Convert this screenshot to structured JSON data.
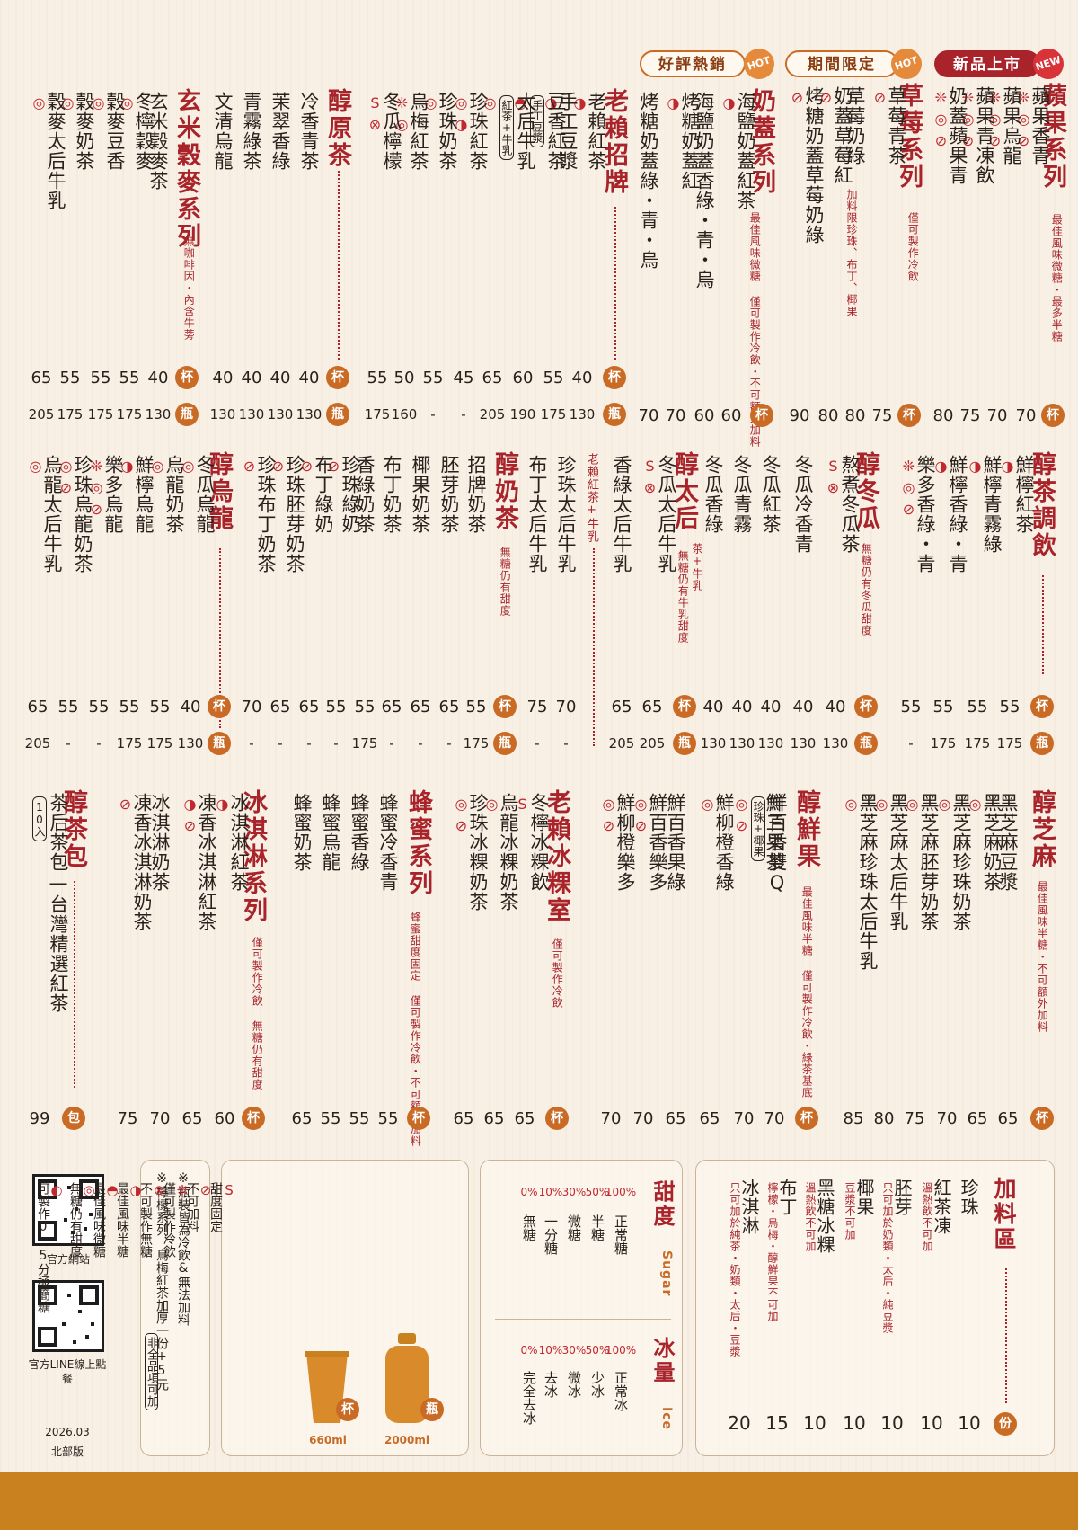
{
  "labels": {
    "hot_seller": "好評熱銷",
    "limited": "期間限定",
    "new_release": "新品上市",
    "hot": "HOT",
    "new": "NEW"
  },
  "unit": {
    "cup": "杯",
    "bottle": "瓶",
    "pack": "包",
    "portion": "份"
  },
  "sections": {
    "apple": {
      "title": "蘋果系列",
      "note": "最佳風味微糖・最多半糖",
      "items": [
        {
          "name": "蘋果香青",
          "icons": "❊◎⊘",
          "cup": "70"
        },
        {
          "name": "蘋果烏龍",
          "icons": "❊◎⊘",
          "cup": "70"
        },
        {
          "name": "蘋果青凍飲",
          "icons": "❊◎⊘",
          "cup": "75"
        },
        {
          "name": "奶蓋蘋果青",
          "icons": "❊◎⊘",
          "cup": "80"
        }
      ]
    },
    "strawberry": {
      "title": "草莓系列",
      "note": "僅可製作冷飲",
      "items": [
        {
          "name": "草莓青茶",
          "icons": "⊘",
          "cup": "75"
        },
        {
          "name": "草莓奶綠",
          "icons": "",
          "cup": "80"
        },
        {
          "name": "奶蓋草莓紅",
          "icons": "⊘",
          "cup": "80"
        },
        {
          "name": "烤糖奶蓋草莓奶綠",
          "icons": "⊘",
          "cup": "90"
        }
      ],
      "topping_note": "加料限珍珠、布丁、椰果"
    },
    "milkcap": {
      "title": "奶蓋系列",
      "note": "最佳風味微糖 僅可製作冷飲・不可額外加料",
      "items": [
        {
          "name": "海鹽奶蓋紅茶",
          "icons": "◑",
          "cup": "60"
        },
        {
          "name": "海鹽奶蓋香綠・青・烏",
          "icons": "",
          "cup": "60"
        },
        {
          "name": "烤糖奶蓋紅",
          "icons": "◑",
          "cup": "70"
        },
        {
          "name": "烤糖奶蓋綠・青・烏",
          "icons": "",
          "cup": "70"
        }
      ]
    },
    "signature": {
      "title": "老賴招牌",
      "items": [
        {
          "name": "老賴紅茶",
          "icons": "◑",
          "cup": "40",
          "bottle": "130"
        },
        {
          "name": "手工豆漿",
          "icons": "◑",
          "cup": "55",
          "bottle": "175"
        },
        {
          "name": "豆香紅茶",
          "tag": "手工豆漿",
          "icons": "◓",
          "cup": "60",
          "bottle": "190"
        },
        {
          "name": "太后牛乳",
          "tag": "紅茶+牛乳",
          "icons": "◎",
          "cup": "65",
          "bottle": "205"
        },
        {
          "name": "珍珠紅茶",
          "icons": "◎◑",
          "cup": "45",
          "bottle": "-"
        },
        {
          "name": "珍珠奶茶",
          "icons": "◎",
          "cup": "55",
          "bottle": "-"
        },
        {
          "name": "烏梅紅茶",
          "icons": "❊◎",
          "cup": "50",
          "bottle": "160"
        },
        {
          "name": "冬瓜檸檬",
          "icons": "S⊗",
          "cup": "55",
          "bottle": "175"
        }
      ]
    },
    "pure": {
      "title": "醇原茶",
      "items": [
        {
          "name": "冷香青茶",
          "cup": "40",
          "bottle": "130"
        },
        {
          "name": "茉翠香綠",
          "cup": "40",
          "bottle": "130"
        },
        {
          "name": "青霧綠茶",
          "cup": "40",
          "bottle": "130"
        },
        {
          "name": "文清烏龍",
          "cup": "40",
          "bottle": "130"
        }
      ]
    },
    "grain": {
      "title": "玄米穀麥系列",
      "note": "無咖啡因・內含牛蒡",
      "items": [
        {
          "name": "玄米穀麥茶",
          "icons": "",
          "cup": "40",
          "bottle": "130"
        },
        {
          "name": "冬檸穀麥",
          "icons": "◎",
          "cup": "55",
          "bottle": "175"
        },
        {
          "name": "穀麥豆香",
          "icons": "◎",
          "cup": "55",
          "bottle": "175"
        },
        {
          "name": "穀麥奶茶",
          "icons": "◎",
          "cup": "55",
          "bottle": "175"
        },
        {
          "name": "穀麥太后牛乳",
          "icons": "◎",
          "cup": "65",
          "bottle": "205"
        }
      ]
    },
    "adjust": {
      "title": "醇茶調飲",
      "items": [
        {
          "name": "鮮檸紅茶",
          "icons": "◑",
          "cup": "55",
          "bottle": "175"
        },
        {
          "name": "鮮檸青霧綠",
          "icons": "◑",
          "cup": "55",
          "bottle": "175"
        },
        {
          "name": "鮮檸香綠・青",
          "icons": "◑",
          "cup": "55",
          "bottle": "175"
        },
        {
          "name": "樂多香綠・青",
          "icons": "❊◎⊘",
          "cup": "55",
          "bottle": "-"
        }
      ]
    },
    "wintermelon": {
      "title": "醇冬瓜",
      "note": "無糖仍有冬瓜甜度",
      "items": [
        {
          "name": "熬煮冬瓜茶",
          "icons": "S⊗",
          "cup": "40",
          "bottle": "130"
        },
        {
          "name": "冬瓜冷香青",
          "icons": "",
          "cup": "40",
          "bottle": "130"
        },
        {
          "name": "冬瓜紅茶",
          "icons": "",
          "cup": "40",
          "bottle": "130"
        },
        {
          "name": "冬瓜青霧",
          "icons": "",
          "cup": "40",
          "bottle": "130"
        },
        {
          "name": "冬瓜香綠",
          "icons": "",
          "cup": "40",
          "bottle": "130"
        }
      ]
    },
    "empress": {
      "title": "醇太后",
      "tag_note": "茶+牛乳",
      "note": "無糖仍有牛乳甜度",
      "items": [
        {
          "name": "冬瓜太后牛乳",
          "icons": "S⊗",
          "cup": "65",
          "bottle": "205"
        },
        {
          "name": "香綠太后牛乳",
          "icons": "",
          "cup": "65",
          "bottle": "205"
        }
      ],
      "sub_label": "老賴紅茶+牛乳",
      "sub_items": [
        {
          "name": "珍珠太后牛乳",
          "cup": "70",
          "bottle": "-"
        },
        {
          "name": "布丁太后牛乳",
          "cup": "75",
          "bottle": "-"
        }
      ]
    },
    "milktea": {
      "title": "醇奶茶",
      "note": "無糖仍有甜度",
      "items": [
        {
          "name": "招牌奶茶",
          "cup": "55",
          "bottle": "175"
        },
        {
          "name": "胚芽奶茶",
          "cup": "65",
          "bottle": "-"
        },
        {
          "name": "椰果奶茶",
          "cup": "65",
          "bottle": "-"
        },
        {
          "name": "布丁奶茶",
          "cup": "65",
          "bottle": "-"
        },
        {
          "name": "香綠奶茶",
          "cup": "55",
          "bottle": "175"
        },
        {
          "name": "珍珠綠奶",
          "icons": "⊘",
          "cup": "55",
          "bottle": "-"
        },
        {
          "name": "布丁綠奶",
          "icons": "⊘",
          "cup": "65",
          "bottle": "-"
        },
        {
          "name": "珍珠胚芽奶茶",
          "icons": "⊘",
          "cup": "65",
          "bottle": "-"
        },
        {
          "name": "珍珠布丁奶茶",
          "icons": "⊘",
          "cup": "70",
          "bottle": "-"
        }
      ]
    },
    "oolong": {
      "title": "醇烏龍",
      "items": [
        {
          "name": "冬瓜烏龍",
          "icons": "◎",
          "cup": "40",
          "bottle": "130"
        },
        {
          "name": "烏龍奶茶",
          "icons": "◎",
          "cup": "55",
          "bottle": "175"
        },
        {
          "name": "鮮檸烏龍",
          "icons": "◑",
          "cup": "55",
          "bottle": "175"
        },
        {
          "name": "樂多烏龍",
          "icons": "❊◎⊘",
          "cup": "55",
          "bottle": "-"
        },
        {
          "name": "珍珠烏龍奶茶",
          "icons": "◎⊘",
          "cup": "55",
          "bottle": "-"
        },
        {
          "name": "烏龍太后牛乳",
          "icons": "◎",
          "cup": "65",
          "bottle": "205"
        }
      ]
    },
    "sesame": {
      "title": "醇芝麻",
      "note": "最佳風味半糖・不可額外加料",
      "items": [
        {
          "name": "黑芝麻豆漿",
          "icons": "",
          "cup": "65"
        },
        {
          "name": "黑芝麻奶茶",
          "icons": "◎",
          "cup": "65"
        },
        {
          "name": "黑芝麻珍珠奶茶",
          "icons": "◎",
          "cup": "70"
        },
        {
          "name": "黑芝麻胚芽奶茶",
          "icons": "◎",
          "cup": "75"
        },
        {
          "name": "黑芝麻太后牛乳",
          "icons": "◎",
          "cup": "80"
        },
        {
          "name": "黑芝麻珍珠太后牛乳",
          "icons": "◎",
          "cup": "85"
        }
      ]
    },
    "fresh": {
      "title": "醇鮮果",
      "note": "最佳風味半糖 僅可製作冷飲・綠茶基底",
      "items": [
        {
          "name": "鮮三果茶",
          "icons": "",
          "cup": "70"
        },
        {
          "name": "鮮百香雙Q",
          "tag": "珍珠+椰果",
          "icons": "◎⊘",
          "cup": "70"
        },
        {
          "name": "鮮柳橙香綠",
          "icons": "◎",
          "cup": "65"
        },
        {
          "name": "鮮百香果綠",
          "icons": "",
          "cup": "65"
        },
        {
          "name": "鮮百香樂多",
          "icons": "◎⊘",
          "cup": "70"
        },
        {
          "name": "鮮柳橙樂多",
          "icons": "◎⊘",
          "cup": "70"
        }
      ]
    },
    "jelly": {
      "title": "老賴冰粿室",
      "note": "僅可製作冷飲",
      "items": [
        {
          "name": "冬檸冰粿飲",
          "icons": "S",
          "cup": "65"
        },
        {
          "name": "烏龍冰粿奶茶",
          "icons": "◎",
          "cup": "65"
        },
        {
          "name": "珍珠冰粿奶茶",
          "icons": "◎⊘",
          "cup": "65"
        }
      ]
    },
    "honey": {
      "title": "蜂蜜系列",
      "note": "蜂蜜甜度固定 僅可製作冷飲・不可額外加料",
      "items": [
        {
          "name": "蜂蜜冷香青",
          "cup": "55"
        },
        {
          "name": "蜂蜜香綠",
          "cup": "55"
        },
        {
          "name": "蜂蜜烏龍",
          "cup": "55"
        },
        {
          "name": "蜂蜜奶茶",
          "cup": "65"
        }
      ]
    },
    "icecream": {
      "title": "冰淇淋系列",
      "note": "僅可製作冷飲 無糖仍有甜度",
      "items": [
        {
          "name": "冰淇淋紅茶",
          "icons": "◑",
          "cup": "60"
        },
        {
          "name": "凍香冰淇淋紅茶",
          "icons": "◑⊘",
          "cup": "65"
        },
        {
          "name": "冰淇淋奶茶",
          "icons": "",
          "cup": "70"
        },
        {
          "name": "凍香冰淇淋奶茶",
          "icons": "⊘",
          "cup": "75"
        }
      ]
    },
    "teabag": {
      "title": "醇茶包",
      "items": [
        {
          "name": "茶后茶包—台灣精選紅茶",
          "tag": "10入",
          "pack": "99"
        }
      ]
    }
  },
  "toppings": {
    "title": "加料區",
    "items": [
      {
        "name": "珍珠",
        "note": "",
        "price": "10"
      },
      {
        "name": "紅茶凍",
        "note": "溫熱飲不可加",
        "price": "10"
      },
      {
        "name": "胚芽",
        "note": "只可加於奶類・太后・純豆漿",
        "price": "10"
      },
      {
        "name": "椰果",
        "note": "豆漿不可加",
        "price": "10"
      },
      {
        "name": "黑糖冰粿",
        "note": "溫熱飲不可加",
        "price": "10"
      },
      {
        "name": "布丁",
        "note": "檸檬・烏梅・醇鮮果不可加",
        "price": "15"
      },
      {
        "name": "冰淇淋",
        "note": "只可加於純茶・奶類・太后・豆漿",
        "price": "20"
      }
    ]
  },
  "sweetness": {
    "title": "甜度",
    "en": "Sugar",
    "levels": [
      {
        "pct": "100%",
        "label": "正常糖"
      },
      {
        "pct": "50%",
        "label": "半糖"
      },
      {
        "pct": "30%",
        "label": "微糖"
      },
      {
        "pct": "10%",
        "label": "一分糖"
      },
      {
        "pct": "0%",
        "label": "無糖"
      }
    ]
  },
  "ice": {
    "title": "冰量",
    "en": "Ice",
    "levels": [
      {
        "pct": "100%",
        "label": "正常冰"
      },
      {
        "pct": "50%",
        "label": "少冰"
      },
      {
        "pct": "30%",
        "label": "微冰"
      },
      {
        "pct": "10%",
        "label": "去冰"
      },
      {
        "pct": "0%",
        "label": "完全去冰"
      }
    ]
  },
  "legend": [
    {
      "icon": "S",
      "label": "甜度固定"
    },
    {
      "icon": "⊘",
      "label": "不可加料"
    },
    {
      "icon": "❊",
      "label": "僅可製作冷飲"
    },
    {
      "icon": "⊗",
      "label": "不可製作無糖"
    },
    {
      "icon": "◑",
      "label": "最佳風味半糖"
    },
    {
      "icon": "◓",
      "label": "最佳風味微糖"
    },
    {
      "icon": "◎",
      "label": "無糖仍有甜度"
    },
    {
      "icon": "◐",
      "label": "可製作0.5分極簡糖"
    }
  ],
  "sizes": {
    "cup_ml": "660ml",
    "bottle_ml": "2000ml"
  },
  "notes": {
    "line1": "※瓶裝皆為冷飲&無法加料",
    "line2": "※檸檬系列、烏梅紅茶加厚一份+5元",
    "tag": "非全品項可加"
  },
  "footer": {
    "website": "官方網站",
    "line": "官方LINE線上點餐",
    "date": "2026.03",
    "region": "北部版"
  },
  "colors": {
    "accent": "#a8232a",
    "orange": "#c96b25",
    "bar": "#c9801f",
    "paper": "#f8f0e5"
  }
}
